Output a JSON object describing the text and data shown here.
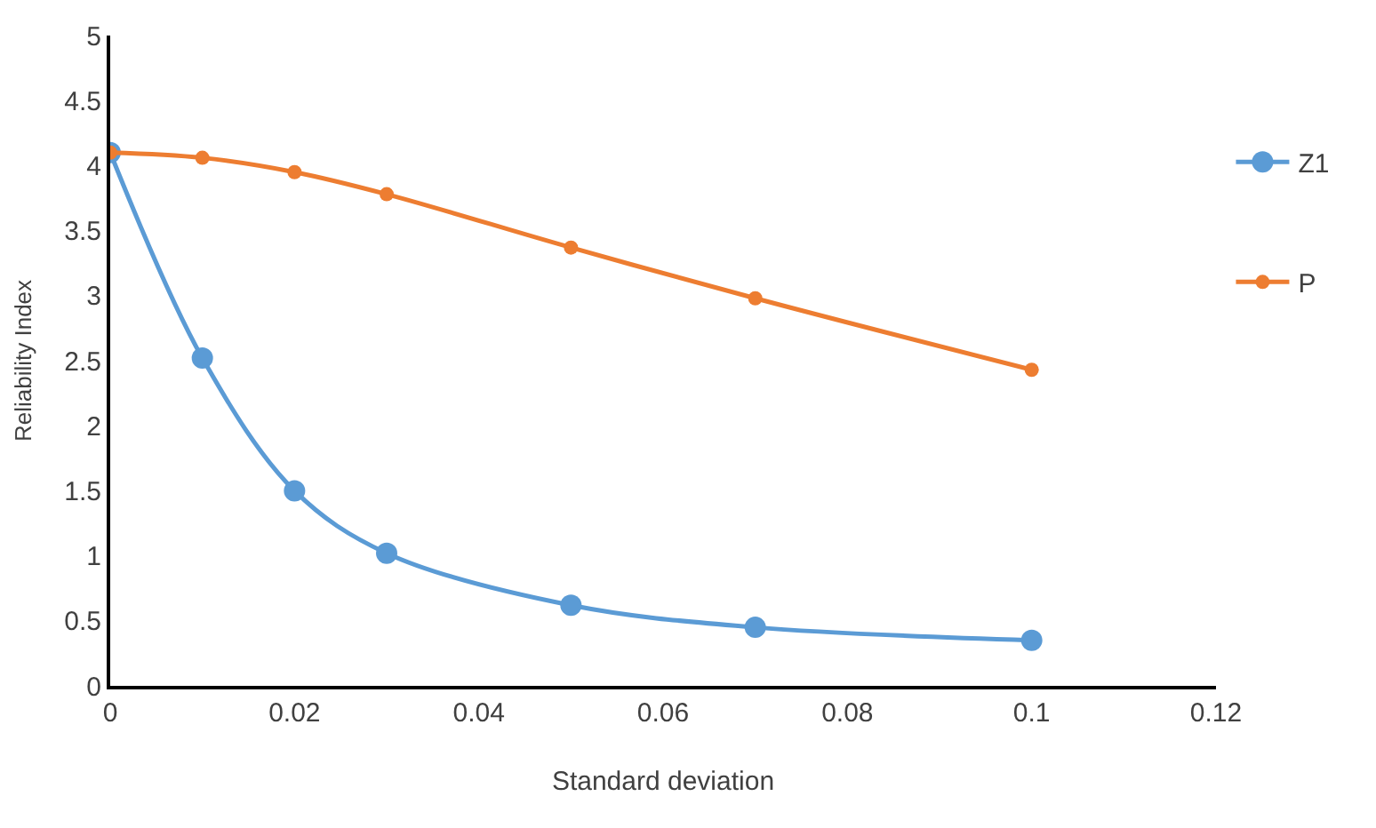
{
  "chart_data": {
    "type": "line",
    "xlabel": "Standard deviation",
    "ylabel": "Reliability Index",
    "x": [
      0,
      0.01,
      0.02,
      0.03,
      0.05,
      0.07,
      0.1
    ],
    "series": [
      {
        "name": "Z1",
        "color": "#5b9bd5",
        "values": [
          4.1,
          2.52,
          1.5,
          1.02,
          0.62,
          0.45,
          0.35
        ]
      },
      {
        "name": "P",
        "color": "#ed7d31",
        "values": [
          4.1,
          4.06,
          3.95,
          3.78,
          3.37,
          2.98,
          2.43
        ]
      }
    ],
    "xlim": [
      0,
      0.12
    ],
    "xticks": [
      0,
      0.02,
      0.04,
      0.06,
      0.08,
      0.1,
      0.12
    ],
    "ylim": [
      0,
      5
    ],
    "yticks": [
      0,
      0.5,
      1,
      1.5,
      2,
      2.5,
      3,
      3.5,
      4,
      4.5,
      5
    ],
    "grid": false,
    "legend": "right",
    "marker": "circle",
    "line_style": "solid"
  }
}
